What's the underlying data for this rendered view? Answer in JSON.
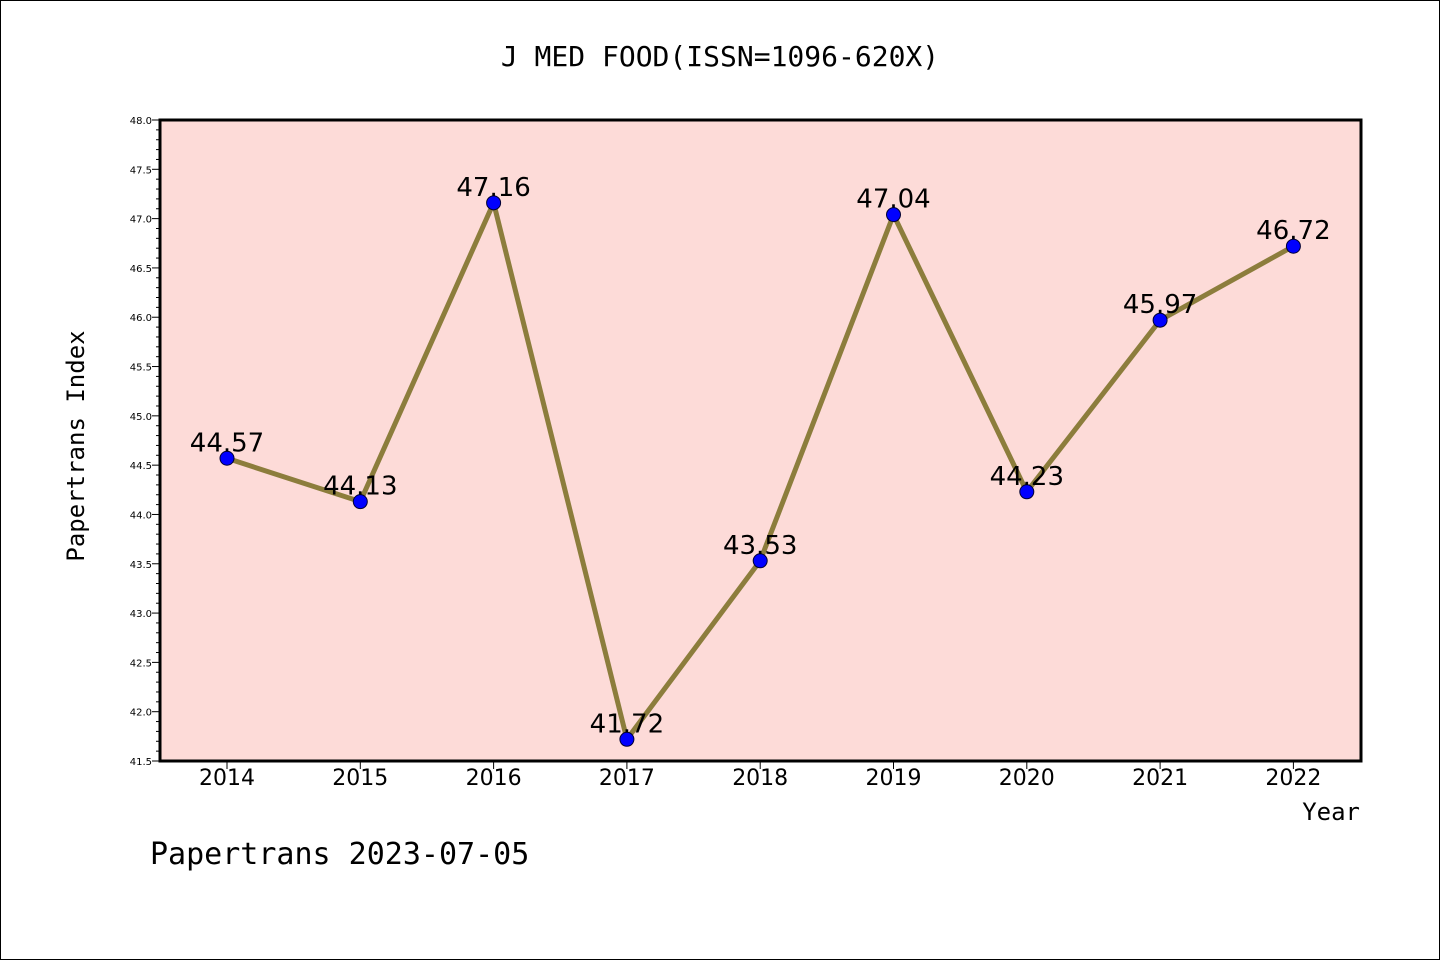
{
  "chart_data": {
    "type": "line",
    "title": "J MED FOOD(ISSN=1096-620X)",
    "xlabel": "Year",
    "ylabel": "Papertrans Index",
    "categories": [
      "2014",
      "2015",
      "2016",
      "2017",
      "2018",
      "2019",
      "2020",
      "2021",
      "2022"
    ],
    "values": [
      44.57,
      44.13,
      47.16,
      41.72,
      43.53,
      47.04,
      44.23,
      45.97,
      46.72
    ],
    "value_labels": [
      "44.57",
      "44.13",
      "47.16",
      "41.72",
      "43.53",
      "47.04",
      "44.23",
      "45.97",
      "46.72"
    ],
    "ylim": [
      41.5,
      48.0
    ],
    "yticks": [
      "41.5",
      "42.0",
      "42.5",
      "43.0",
      "43.5",
      "44.0",
      "44.5",
      "45.0",
      "45.5",
      "46.0",
      "46.5",
      "47.0",
      "47.5",
      "48.0"
    ],
    "grid": false,
    "legend": "none",
    "colors": {
      "line": "#8c7d3c",
      "marker": "#0000ff",
      "plot_background": "#fddbd8",
      "axes": "#000000"
    }
  },
  "footer": {
    "text": "Papertrans 2023-07-05"
  }
}
